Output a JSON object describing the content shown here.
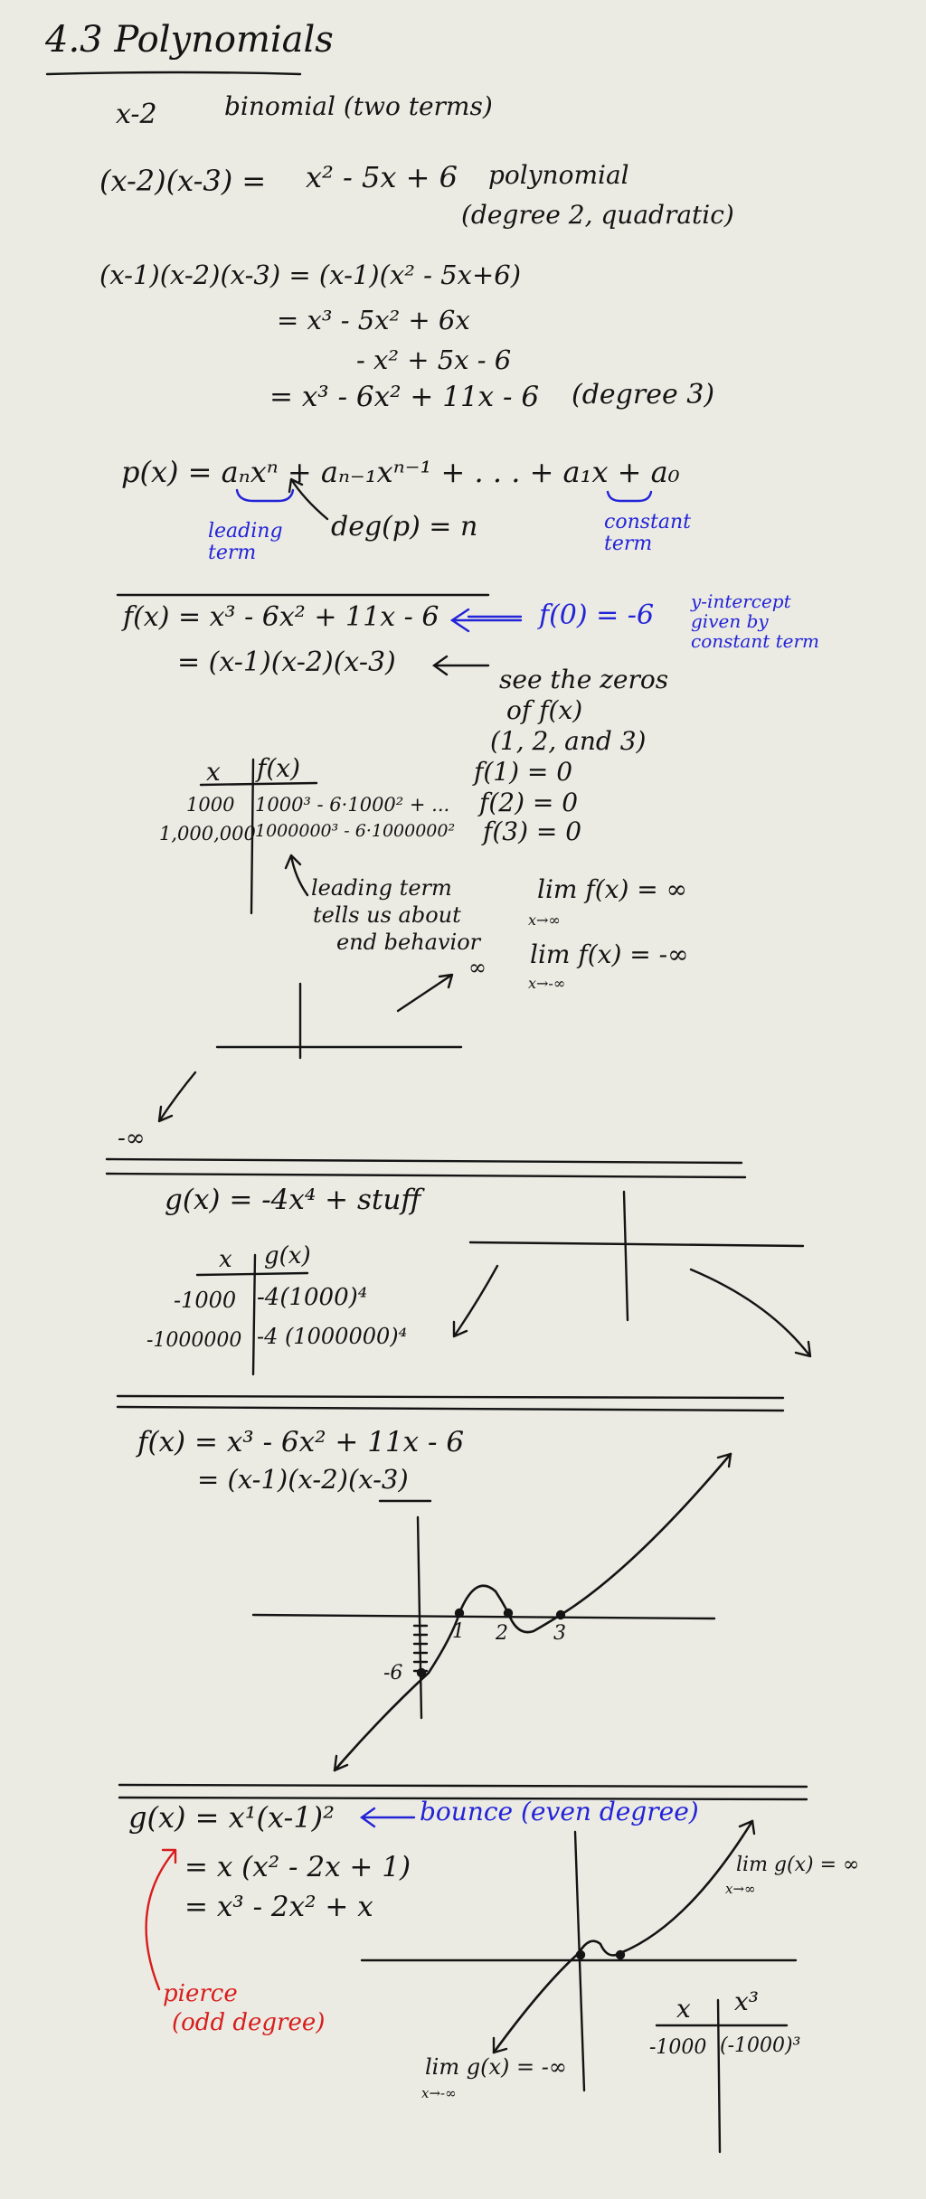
{
  "title": "4.3 Polynomials",
  "intro": {
    "binomial_expr": "x-2",
    "binomial_note": "binomial (two terms)",
    "product_lhs": "(x-2)(x-3) =",
    "product_rhs": "x² - 5x + 6",
    "poly_word": "polynomial",
    "poly_degree_note": "(degree 2, quadratic)"
  },
  "expansion": {
    "line1": "(x-1)(x-2)(x-3) = (x-1)(x² - 5x+6)",
    "line2": "=  x³ - 5x² + 6x",
    "line3": "- x² + 5x - 6",
    "line4": "= x³ - 6x² + 11x - 6",
    "line4_note": "(degree 3)"
  },
  "general_form": {
    "expr": "p(x) = aₙxⁿ + aₙ₋₁xⁿ⁻¹ + . . . + a₁x + a₀",
    "leading_label": "leading term",
    "degree_eq": "deg(p) = n",
    "constant_label": "constant term"
  },
  "section_f": {
    "f_def": "f(x) = x³ - 6x² + 11x - 6",
    "f0": "f(0) = -6",
    "y_intercept_note": "y-intercept given by constant term",
    "factored": "= (x-1)(x-2)(x-3)",
    "zeros_note_1": "see the zeros",
    "zeros_note_2": "of f(x)",
    "zeros_note_3": "(1, 2, and 3)",
    "zero1": "f(1) = 0",
    "zero2": "f(2) = 0",
    "zero3": "f(3) = 0",
    "table_head_x": "x",
    "table_head_f": "f(x)",
    "table_rows": [
      {
        "x": "1000",
        "f": "1000³ - 6·1000² + ..."
      },
      {
        "x": "1,000,000",
        "f": "1000000³ - 6·1000000²"
      }
    ],
    "leading_note_1": "leading term",
    "leading_note_2": "tells us about",
    "leading_note_3": "end behavior",
    "lim1": "lim f(x) = ∞",
    "lim1_sub": "x→∞",
    "lim2": "lim f(x) = -∞",
    "lim2_sub": "x→-∞",
    "pos_inf": "∞",
    "neg_inf": "-∞"
  },
  "section_g": {
    "g_def": "g(x) = -4x⁴ + stuff",
    "table_head_x": "x",
    "table_head_g": "g(x)",
    "table_rows": [
      {
        "x": "-1000",
        "g": "-4(1000)⁴"
      },
      {
        "x": "-1000000",
        "g": "-4 (1000000)⁴"
      }
    ]
  },
  "section_graph": {
    "f_def": "f(x) = x³ - 6x² + 11x - 6",
    "factored": "= (x-1)(x-2)(x-3)",
    "tick1": "1",
    "tick2": "2",
    "tick3": "3",
    "y_label": "-6"
  },
  "section_bounce": {
    "g_def": "g(x) = x¹(x-1)²",
    "bounce_note": "bounce (even degree)",
    "step1": "= x (x² - 2x + 1)",
    "step2": "= x³ - 2x² + x",
    "pierce_1": "pierce",
    "pierce_2": "(odd degree)",
    "lim_pos": "lim g(x) = ∞",
    "lim_pos_sub": "x→∞",
    "lim_neg": "lim g(x) = -∞",
    "lim_neg_sub": "x→-∞",
    "table_head_x": "x",
    "table_head_v": "x³",
    "table_row_x": "-1000",
    "table_row_v": "(-1000)³"
  },
  "colors": {
    "ink": "#141414",
    "blue": "#2323d8",
    "red": "#d81d1d",
    "paper": "#ebebe3"
  }
}
